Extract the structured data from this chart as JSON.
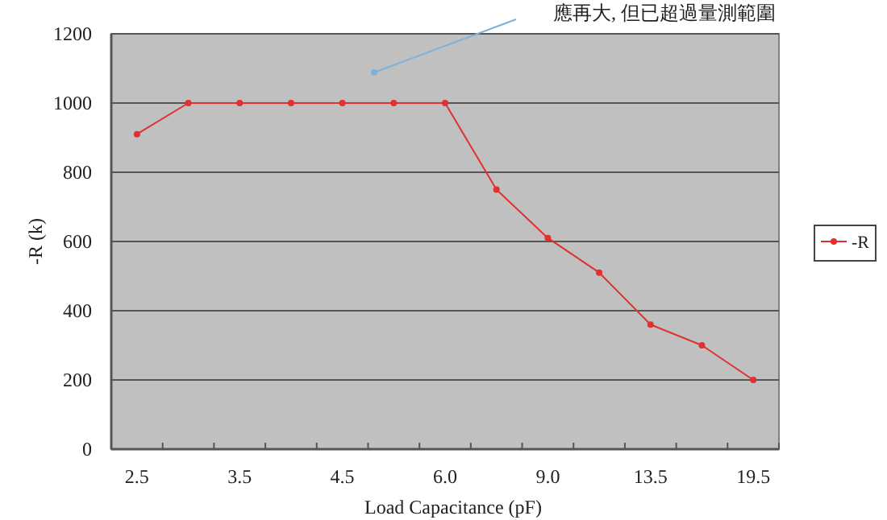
{
  "chart_data": {
    "type": "line",
    "categories": [
      "2.5",
      null,
      "3.5",
      null,
      "4.5",
      null,
      "6.0",
      null,
      "9.0",
      null,
      "13.5",
      null,
      "19.5"
    ],
    "series": [
      {
        "name": "-R",
        "color": "#e03030",
        "values": [
          910,
          1000,
          1000,
          1000,
          1000,
          1000,
          1000,
          750,
          610,
          510,
          360,
          300,
          200
        ]
      }
    ],
    "xlabel": "Load Capacitance (pF)",
    "ylabel": "-R (k)",
    "annotations": [
      "應再大, 但已超過量測範圍"
    ],
    "ylim": [
      0,
      1200
    ],
    "yticks": [
      0,
      200,
      400,
      600,
      800,
      1000,
      1200
    ],
    "grid": "y",
    "legend": "right",
    "marker": "circle",
    "line_style": "solid"
  }
}
